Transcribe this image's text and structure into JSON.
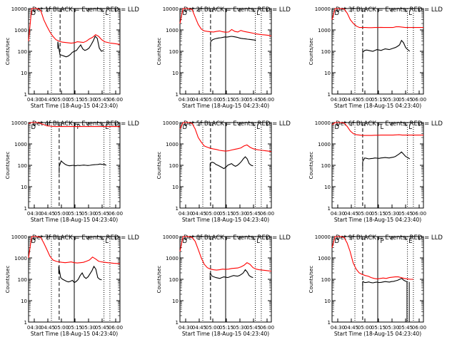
{
  "chart_data": [
    {
      "type": "line",
      "title": "Det 1f BLACK = Events, RED = LLD",
      "xlabel": "Start Time (18-Aug-15 04:23:40)",
      "ylabel": "Counts/sec",
      "ylim": [
        1,
        10000
      ],
      "yscale": "log",
      "xticks": [
        "04:30",
        "04:45",
        "05:00",
        "05:15",
        "05:30",
        "05:45",
        "06:00"
      ],
      "yticks": [
        "1",
        "10",
        "100",
        "1000",
        "10000"
      ],
      "marker_labels": [
        "D",
        "L"
      ],
      "series": [
        {
          "color": "#000000",
          "start": 0.32,
          "end": 0.82,
          "values": [
            280,
            70,
            65,
            60,
            55,
            60,
            70,
            90,
            100,
            110,
            150,
            200,
            130,
            110,
            120,
            140,
            200,
            300,
            500,
            400,
            140,
            100,
            110
          ]
        },
        {
          "color": "#ff0000",
          "start": 0.0,
          "end": 1.0,
          "values": [
            300,
            10000,
            10000,
            10000,
            8000,
            3000,
            1500,
            800,
            500,
            350,
            300,
            270,
            260,
            250,
            240,
            250,
            280,
            270,
            260,
            300,
            380,
            450,
            600,
            500,
            350,
            280,
            260,
            240,
            230,
            220,
            210
          ]
        }
      ],
      "dotted_lines": [
        0.25,
        0.825,
        0.89
      ],
      "dashed_line": 0.345,
      "solid_line": 0.5
    },
    {
      "type": "line",
      "title": "Det 2f BLACK = Events, RED = LLD",
      "xlabel": "Start Time (18-Aug-15 04:23:40)",
      "ylabel": "Counts/sec",
      "ylim": [
        1,
        10000
      ],
      "yscale": "log",
      "xticks": [
        "04:30",
        "04:45",
        "05:00",
        "05:15",
        "05:30",
        "05:45",
        "06:00"
      ],
      "yticks": [
        "1",
        "10",
        "100",
        "1000",
        "10000"
      ],
      "marker_labels": [
        "D",
        "L"
      ],
      "series": [
        {
          "color": "#000000",
          "start": 0.335,
          "end": 0.83,
          "values": [
            280,
            350,
            380,
            400,
            420,
            430,
            450,
            470,
            460,
            480,
            500,
            490,
            470,
            450,
            420,
            400,
            390,
            380,
            370,
            360,
            350,
            340,
            330
          ]
        },
        {
          "color": "#ff0000",
          "start": 0.0,
          "end": 1.0,
          "values": [
            2000,
            10000,
            10000,
            10000,
            9000,
            4000,
            1800,
            1100,
            900,
            850,
            820,
            800,
            850,
            900,
            820,
            780,
            800,
            1050,
            850,
            800,
            950,
            850,
            800,
            750,
            700,
            650,
            620,
            600,
            580,
            560,
            520
          ]
        }
      ],
      "dotted_lines": [
        0.25,
        0.825,
        0.89
      ],
      "dashed_line": 0.335,
      "solid_line": 0.5
    },
    {
      "type": "line",
      "title": "Det 3f BLACK = Events, RED = LLD",
      "xlabel": "Start Time (18-Aug-15 04:23:40)",
      "ylabel": "Counts/sec",
      "ylim": [
        1,
        10000
      ],
      "yscale": "log",
      "xticks": [
        "04:30",
        "04:45",
        "05:00",
        "05:15",
        "05:30",
        "05:45",
        "06:00"
      ],
      "yticks": [
        "1",
        "10",
        "100",
        "1000",
        "10000"
      ],
      "marker_labels": [
        "D",
        "L"
      ],
      "series": [
        {
          "color": "#000000",
          "start": 0.335,
          "end": 0.85,
          "values": [
            90,
            110,
            115,
            110,
            105,
            100,
            110,
            120,
            115,
            110,
            120,
            130,
            125,
            120,
            130,
            140,
            150,
            170,
            200,
            320,
            250,
            150,
            120,
            100
          ]
        },
        {
          "color": "#ff0000",
          "start": 0.0,
          "end": 1.0,
          "values": [
            3000,
            10000,
            10000,
            10000,
            9500,
            6000,
            3000,
            2000,
            1500,
            1300,
            1300,
            1300,
            1280,
            1280,
            1300,
            1300,
            1320,
            1300,
            1300,
            1300,
            1300,
            1400,
            1400,
            1350,
            1300,
            1300,
            1300,
            1300,
            1300,
            1300,
            1300
          ]
        }
      ],
      "dotted_lines": [
        0.25,
        0.825,
        0.89
      ],
      "dashed_line": 0.335,
      "solid_line": 0.5
    },
    {
      "type": "line",
      "title": "Det 4f BLACK = Events, RED = LLD",
      "xlabel": "Start Time (18-Aug-15 04:23:40)",
      "ylabel": "Counts/sec",
      "ylim": [
        1,
        10000
      ],
      "yscale": "log",
      "xticks": [
        "04:30",
        "04:45",
        "05:00",
        "05:15",
        "05:30",
        "05:45",
        "06:00"
      ],
      "yticks": [
        "1",
        "10",
        "100",
        "1000",
        "10000"
      ],
      "marker_labels": [
        "D",
        "P",
        "E"
      ],
      "series": [
        {
          "color": "#000000",
          "start": 0.335,
          "end": 0.85,
          "values": [
            90,
            160,
            130,
            110,
            100,
            95,
            98,
            100,
            95,
            100,
            98,
            100,
            102,
            100,
            98,
            100,
            104,
            106,
            108,
            110,
            115,
            110,
            112,
            100
          ]
        },
        {
          "color": "#ff0000",
          "start": 0.0,
          "end": 1.0,
          "values": [
            9000,
            10000,
            10000,
            10000,
            9000,
            8000,
            7000,
            6800,
            6600,
            6500,
            6500,
            6500,
            6500,
            6500,
            6500,
            6500,
            6500,
            6500,
            6500,
            6500,
            6500,
            6500,
            6500,
            6500,
            6500,
            6500,
            6500,
            6500,
            6500,
            6500,
            6500
          ]
        }
      ],
      "dotted_lines": [
        0.25,
        0.825,
        0.89
      ],
      "dashed_line": 0.335,
      "solid_line": 0.5
    },
    {
      "type": "line",
      "title": "Det 5f BLACK = Events, RED = LLD",
      "xlabel": "Start Time (18-Aug-15 04:23:40)",
      "ylabel": "Counts/sec",
      "ylim": [
        1,
        10000
      ],
      "yscale": "log",
      "xticks": [
        "04:30",
        "04:45",
        "05:00",
        "05:15",
        "05:30",
        "05:45",
        "06:00"
      ],
      "yticks": [
        "1",
        "10",
        "100",
        "1000",
        "10000"
      ],
      "marker_labels": [
        "D",
        "L"
      ],
      "series": [
        {
          "color": "#000000",
          "start": 0.33,
          "end": 0.8,
          "values": [
            120,
            140,
            130,
            110,
            100,
            90,
            80,
            70,
            80,
            100,
            110,
            120,
            100,
            90,
            100,
            120,
            150,
            200,
            250,
            200,
            120,
            100,
            95
          ]
        },
        {
          "color": "#ff0000",
          "start": 0.0,
          "end": 1.0,
          "values": [
            5000,
            10000,
            10000,
            10000,
            9000,
            5000,
            2000,
            1200,
            800,
            700,
            620,
            580,
            550,
            500,
            480,
            460,
            480,
            520,
            560,
            600,
            650,
            800,
            900,
            700,
            600,
            550,
            520,
            500,
            480,
            460,
            440
          ]
        }
      ],
      "dotted_lines": [
        0.25,
        0.825,
        0.89
      ],
      "dashed_line": 0.335,
      "solid_line": 0.5
    },
    {
      "type": "line",
      "title": "Det 6f BLACK = Events, RED = LLD",
      "xlabel": "Start Time (18-Aug-15 04:23:40)",
      "ylabel": "Counts/sec",
      "ylim": [
        1,
        10000
      ],
      "yscale": "log",
      "xticks": [
        "04:30",
        "04:45",
        "05:00",
        "05:15",
        "05:30",
        "05:45",
        "06:00"
      ],
      "yticks": [
        "1",
        "10",
        "100",
        "1000",
        "10000"
      ],
      "marker_labels": [
        "D",
        "L",
        "L"
      ],
      "series": [
        {
          "color": "#000000",
          "start": 0.335,
          "end": 0.85,
          "values": [
            150,
            220,
            210,
            200,
            205,
            210,
            220,
            215,
            210,
            220,
            225,
            230,
            225,
            220,
            230,
            240,
            260,
            300,
            350,
            420,
            330,
            260,
            230,
            200
          ]
        },
        {
          "color": "#ff0000",
          "start": 0.0,
          "end": 1.0,
          "values": [
            8000,
            10000,
            10000,
            10000,
            9500,
            6500,
            4000,
            3000,
            2700,
            2600,
            2500,
            2500,
            2500,
            2500,
            2550,
            2550,
            2600,
            2600,
            2600,
            2600,
            2600,
            2650,
            2700,
            2600,
            2600,
            2600,
            2600,
            2600,
            2600,
            2600,
            2600
          ]
        }
      ],
      "dotted_lines": [
        0.25,
        0.825,
        0.89
      ],
      "dashed_line": 0.335,
      "solid_line": 0.5
    },
    {
      "type": "line",
      "title": "Det 7f BLACK = Events, RED = LLD",
      "xlabel": "Start Time (18-Aug-15 04:23:40)",
      "ylabel": "Counts/sec",
      "ylim": [
        1,
        10000
      ],
      "yscale": "log",
      "xticks": [
        "04:30",
        "04:45",
        "05:00",
        "05:15",
        "05:30",
        "05:45",
        "06:00"
      ],
      "yticks": [
        "1",
        "10",
        "100",
        "1000",
        "10000"
      ],
      "marker_labels": [
        "D",
        "L"
      ],
      "series": [
        {
          "color": "#000000",
          "start": 0.33,
          "end": 0.8,
          "values": [
            400,
            120,
            100,
            90,
            80,
            75,
            80,
            90,
            70,
            80,
            100,
            150,
            200,
            130,
            110,
            130,
            180,
            250,
            400,
            300,
            120,
            100,
            95
          ]
        },
        {
          "color": "#ff0000",
          "start": 0.0,
          "end": 1.0,
          "values": [
            1000,
            10000,
            10000,
            10000,
            9000,
            5000,
            2500,
            1200,
            800,
            700,
            650,
            620,
            600,
            620,
            650,
            600,
            580,
            600,
            620,
            700,
            800,
            1100,
            900,
            700,
            650,
            620,
            600,
            580,
            560,
            550,
            540
          ]
        }
      ],
      "dotted_lines": [
        0.25,
        0.825,
        0.89
      ],
      "dashed_line": 0.335,
      "solid_line": 0.5
    },
    {
      "type": "line",
      "title": "Det 8f BLACK = Events, RED = LLD",
      "xlabel": "Start Time (18-Aug-15 04:23:40)",
      "ylabel": "Counts/sec",
      "ylim": [
        1,
        10000
      ],
      "yscale": "log",
      "xticks": [
        "04:30",
        "04:45",
        "05:00",
        "05:15",
        "05:30",
        "05:45",
        "06:00"
      ],
      "yticks": [
        "1",
        "10",
        "100",
        "1000",
        "10000"
      ],
      "marker_labels": [
        "D",
        "L"
      ],
      "series": [
        {
          "color": "#000000",
          "start": 0.33,
          "end": 0.8,
          "values": [
            200,
            140,
            130,
            120,
            115,
            110,
            120,
            130,
            125,
            120,
            130,
            140,
            150,
            145,
            140,
            150,
            170,
            200,
            280,
            220,
            150,
            130,
            120
          ]
        },
        {
          "color": "#ff0000",
          "start": 0.0,
          "end": 1.0,
          "values": [
            2000,
            10000,
            10000,
            10000,
            9000,
            6000,
            2500,
            1000,
            500,
            350,
            300,
            280,
            270,
            280,
            300,
            290,
            300,
            320,
            330,
            340,
            380,
            450,
            600,
            500,
            350,
            300,
            280,
            270,
            260,
            250,
            240
          ]
        }
      ],
      "dotted_lines": [
        0.25,
        0.825,
        0.89
      ],
      "dashed_line": 0.335,
      "solid_line": 0.5
    },
    {
      "type": "line",
      "title": "Det 9f BLACK = Events, RED = LLD",
      "xlabel": "Start Time (18-Aug-15 04:23:40)",
      "ylabel": "Counts/sec",
      "ylim": [
        1,
        10000
      ],
      "yscale": "log",
      "xticks": [
        "04:30",
        "04:45",
        "05:00",
        "05:15",
        "05:30",
        "05:45",
        "06:00"
      ],
      "yticks": [
        "1",
        "10",
        "100",
        "1000",
        "10000"
      ],
      "marker_labels": [
        "D",
        "P",
        "E"
      ],
      "series": [
        {
          "color": "#000000",
          "start": 0.335,
          "end": 0.83,
          "values": [
            80,
            70,
            72,
            75,
            70,
            68,
            72,
            74,
            70,
            72,
            75,
            78,
            76,
            74,
            78,
            80,
            85,
            90,
            100,
            110,
            90,
            80,
            75
          ]
        },
        {
          "color": "#ff0000",
          "start": 0.0,
          "end": 0.89,
          "values": [
            3000,
            10000,
            10000,
            10000,
            9000,
            5000,
            2000,
            600,
            300,
            200,
            170,
            150,
            140,
            120,
            110,
            105,
            110,
            115,
            110,
            120,
            125,
            130,
            130,
            120,
            110,
            105,
            100,
            100
          ]
        }
      ],
      "dotted_lines": [
        0.25,
        0.825,
        0.89
      ],
      "dashed_line": 0.335,
      "solid_line": 0.5,
      "dropout_x": [
        0.82,
        0.845
      ]
    }
  ]
}
